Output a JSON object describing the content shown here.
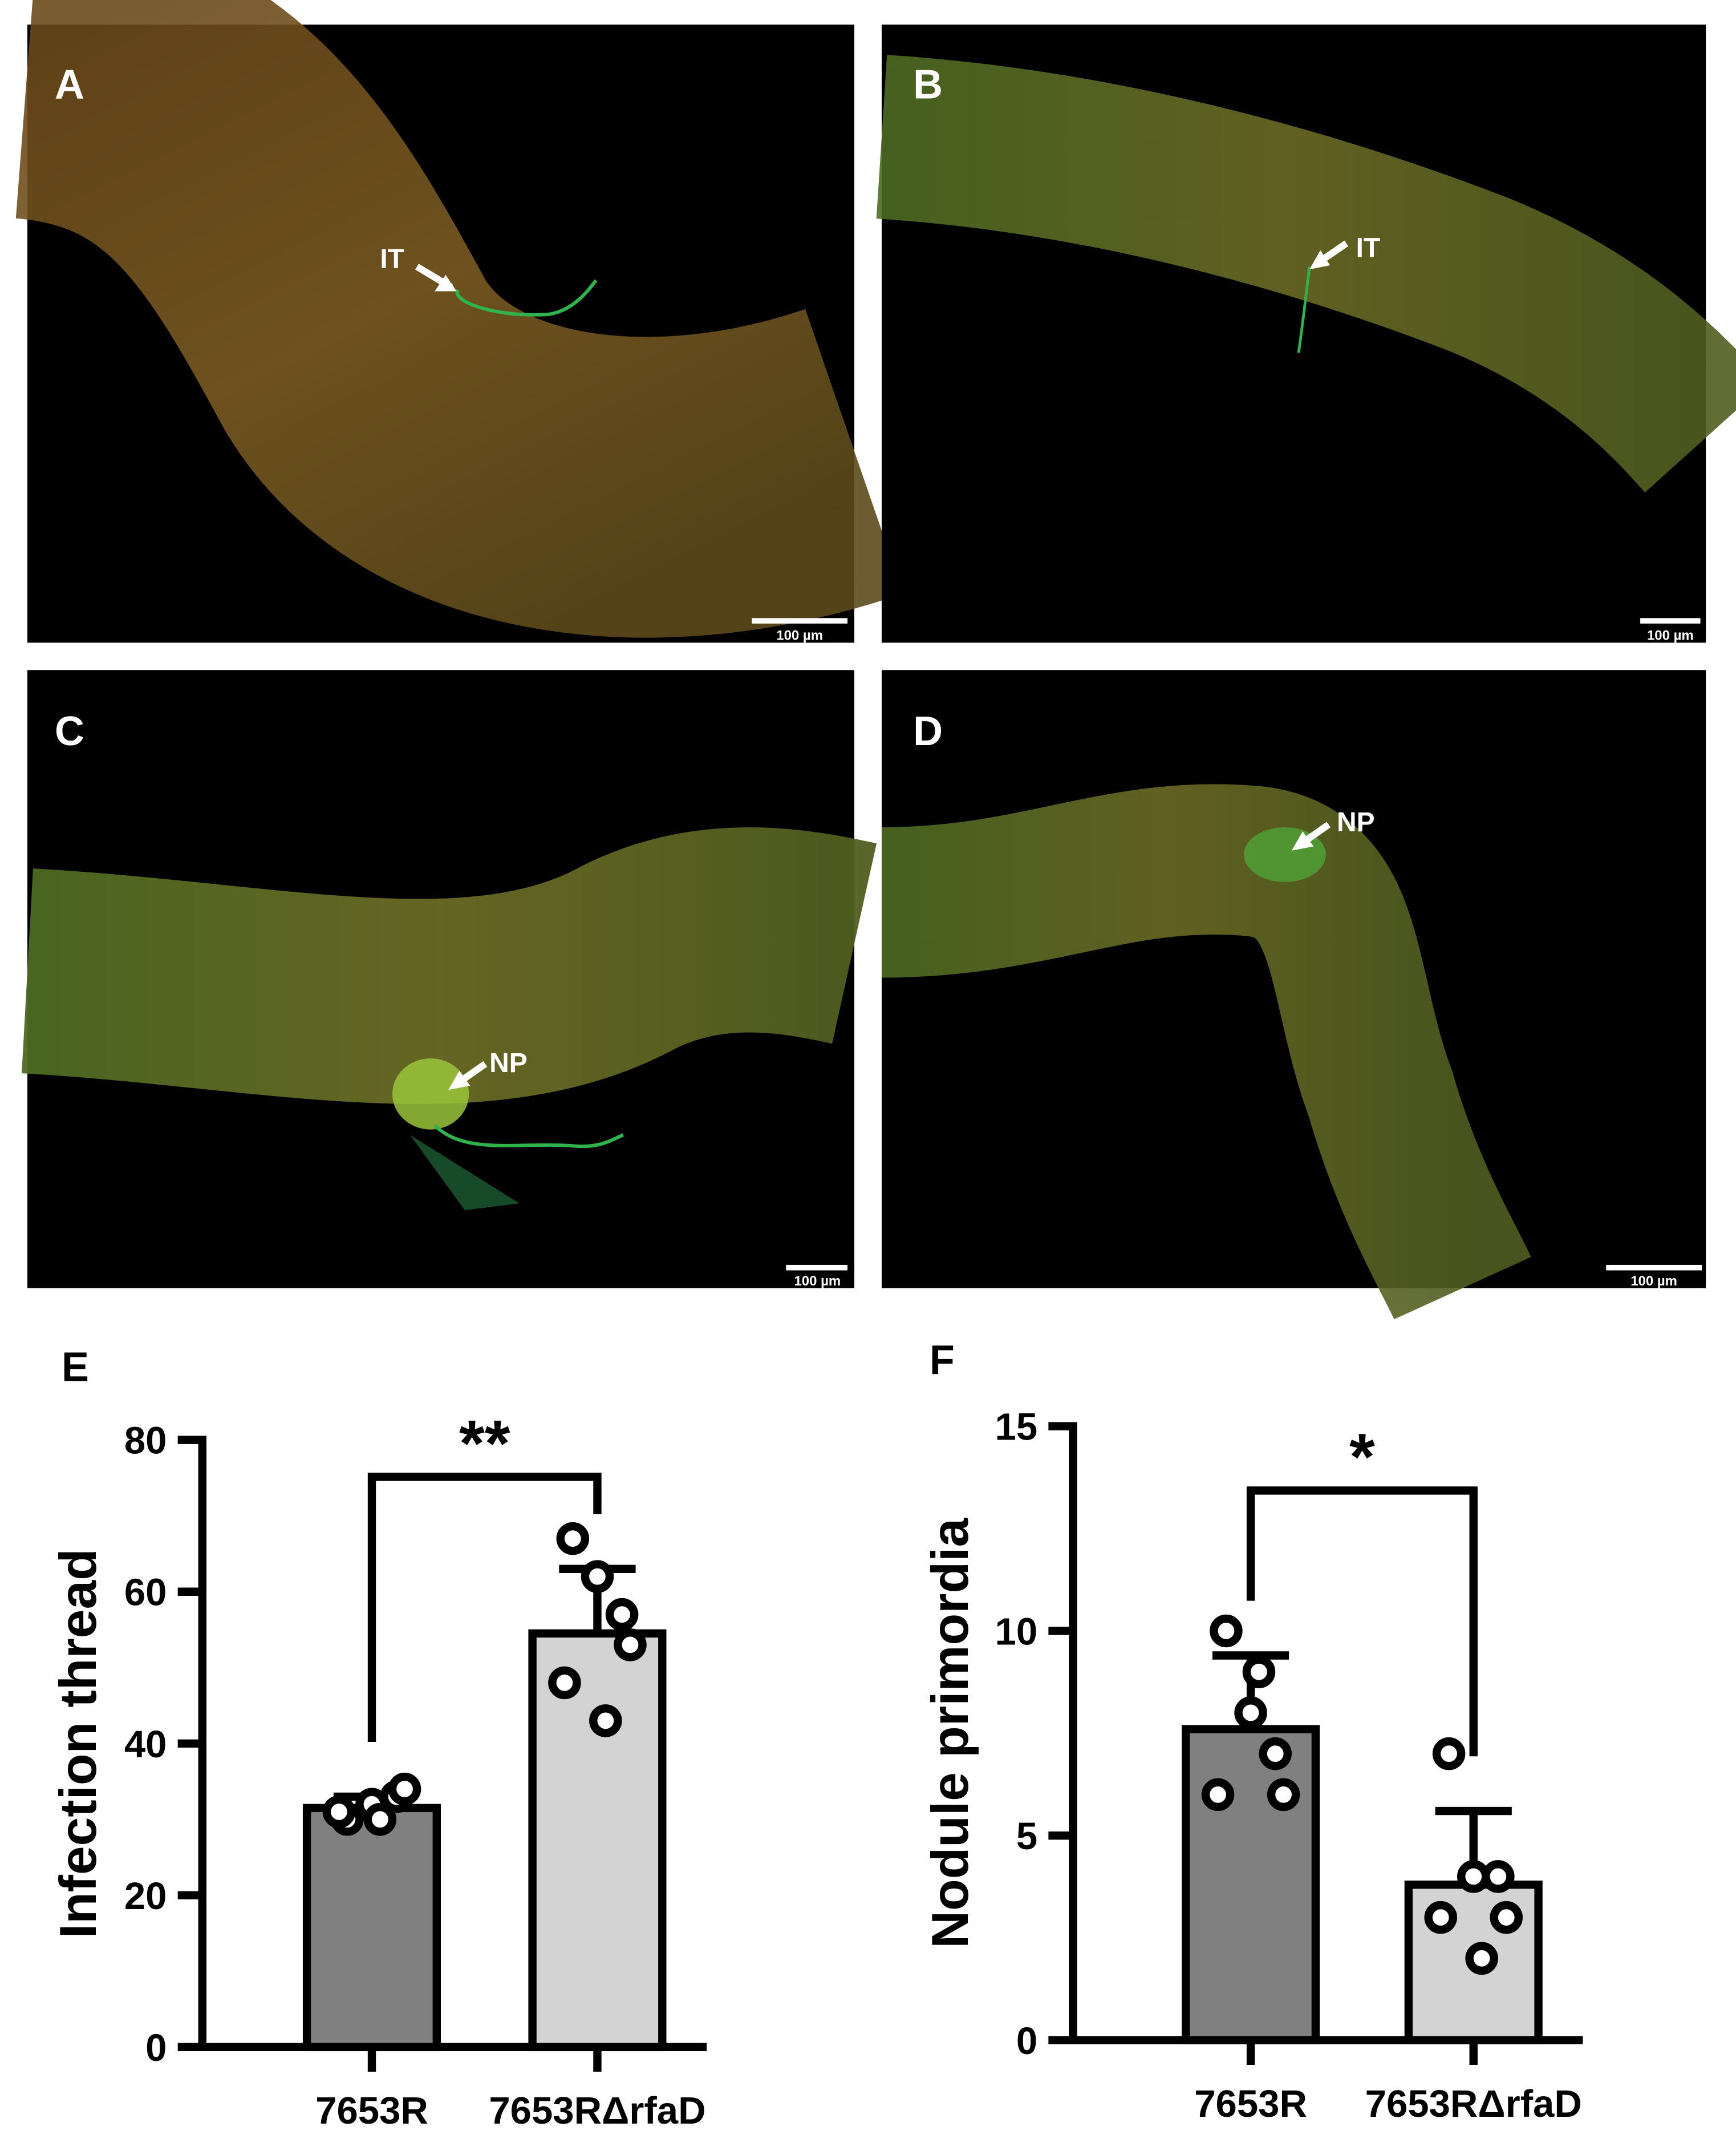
{
  "panels": [
    {
      "label": "A",
      "annotation": "IT",
      "scale_bar": "100 µm"
    },
    {
      "label": "B",
      "annotation": "IT",
      "scale_bar": "100 µm"
    },
    {
      "label": "C",
      "annotation": "NP",
      "scale_bar": "100 µm"
    },
    {
      "label": "D",
      "annotation": "NP",
      "scale_bar": "100 µm"
    }
  ],
  "chart_data": [
    {
      "type": "bar",
      "panel": "E",
      "ylabel": "Infection thread",
      "categories": [
        "7653R",
        "7653RΔrfaD"
      ],
      "values": [
        31.5,
        54.5
      ],
      "errors": [
        1.5,
        8.5
      ],
      "points": [
        [
          30,
          32,
          33,
          34,
          31,
          30
        ],
        [
          67,
          62,
          57,
          53,
          48,
          43
        ]
      ],
      "colors": [
        "#808080",
        "#d3d3d3"
      ],
      "significance": "**",
      "ylim": [
        0,
        80
      ],
      "yticks": [
        0,
        20,
        40,
        60,
        80
      ]
    },
    {
      "type": "bar",
      "panel": "F",
      "ylabel": "Nodule primordia",
      "categories": [
        "7653R",
        "7653RΔrfaD"
      ],
      "values": [
        7.6,
        3.8
      ],
      "errors": [
        1.8,
        1.8
      ],
      "points": [
        [
          10,
          8,
          7,
          6,
          6,
          9
        ],
        [
          7,
          4,
          4,
          3,
          3,
          2
        ]
      ],
      "colors": [
        "#808080",
        "#d3d3d3"
      ],
      "significance": "*",
      "ylim": [
        0,
        15
      ],
      "yticks": [
        0,
        5,
        10,
        15
      ]
    }
  ]
}
